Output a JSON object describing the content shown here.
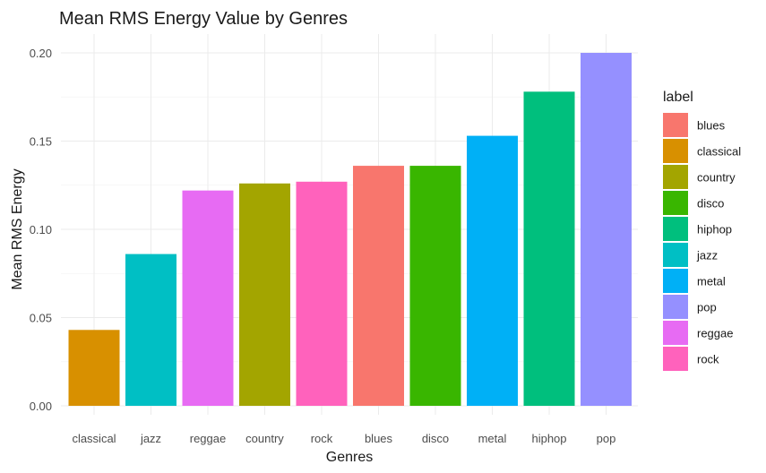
{
  "chart_data": {
    "type": "bar",
    "title": "Mean RMS Energy Value by Genres",
    "xlabel": "Genres",
    "ylabel": "Mean RMS Energy",
    "categories": [
      "classical",
      "jazz",
      "reggae",
      "country",
      "rock",
      "blues",
      "disco",
      "metal",
      "hiphop",
      "pop"
    ],
    "values": [
      0.043,
      0.086,
      0.122,
      0.126,
      0.127,
      0.136,
      0.136,
      0.153,
      0.178,
      0.2
    ],
    "ylim": [
      0,
      0.2
    ],
    "yticks": [
      "0.00",
      "0.05",
      "0.10",
      "0.15",
      "0.20"
    ],
    "ytick_values": [
      0,
      0.05,
      0.1,
      0.15,
      0.2
    ],
    "grid": true,
    "legend": {
      "title": "label",
      "placement": "right",
      "entries": [
        "blues",
        "classical",
        "country",
        "disco",
        "hiphop",
        "jazz",
        "metal",
        "pop",
        "reggae",
        "rock"
      ]
    },
    "colors": {
      "blues": "#F8766D",
      "classical": "#D89000",
      "country": "#A3A500",
      "disco": "#39B600",
      "hiphop": "#00BF7D",
      "jazz": "#00BFC4",
      "metal": "#00B0F6",
      "pop": "#9590FF",
      "reggae": "#E76BF3",
      "rock": "#FF62BC"
    }
  }
}
